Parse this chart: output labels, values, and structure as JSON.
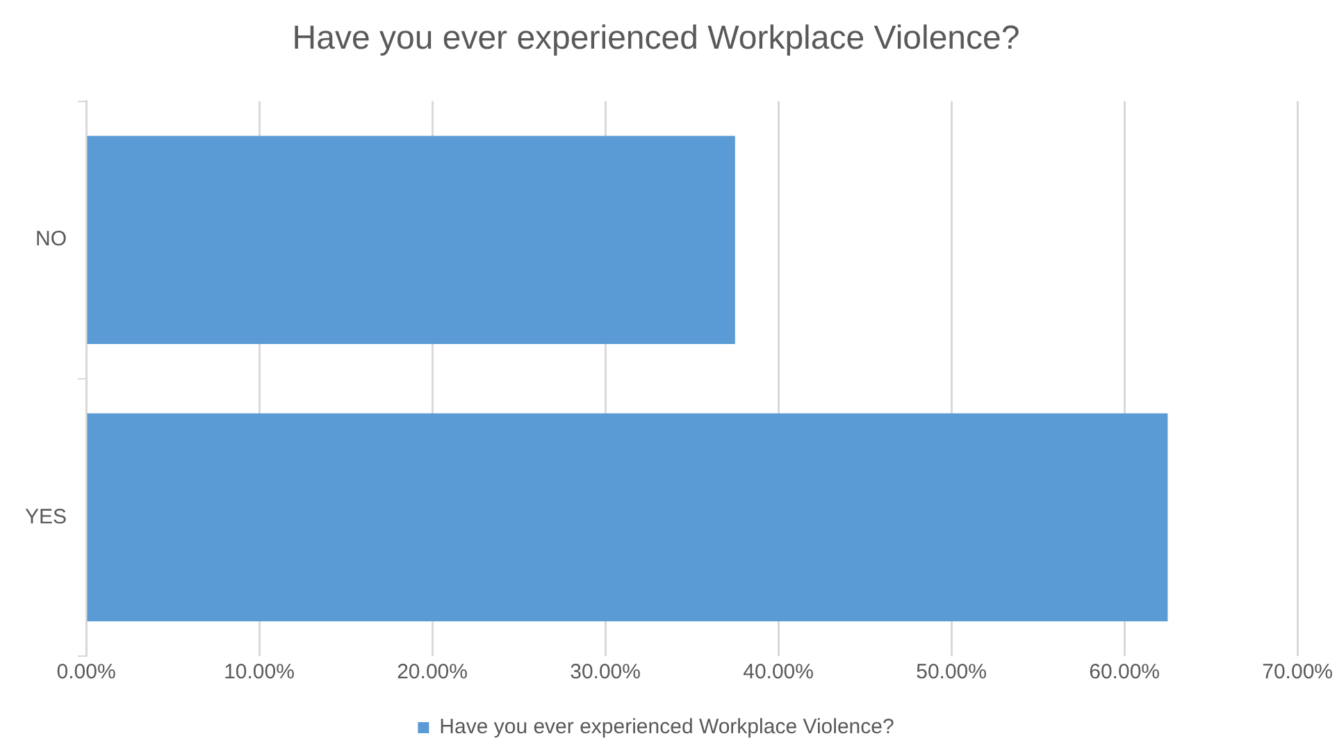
{
  "chart_data": {
    "type": "bar",
    "orientation": "horizontal",
    "title": "Have you ever experienced Workplace Violence?",
    "categories": [
      "NO",
      "YES"
    ],
    "series": [
      {
        "name": "Have you ever experienced Workplace Violence?",
        "color": "#5b9bd5",
        "values": [
          37.5,
          62.5
        ]
      }
    ],
    "xlim": [
      0,
      70
    ],
    "xticks": [
      {
        "value": 0,
        "label": "0.00%"
      },
      {
        "value": 10,
        "label": "10.00%"
      },
      {
        "value": 20,
        "label": "20.00%"
      },
      {
        "value": 30,
        "label": "30.00%"
      },
      {
        "value": 40,
        "label": "40.00%"
      },
      {
        "value": 50,
        "label": "50.00%"
      },
      {
        "value": 60,
        "label": "60.00%"
      },
      {
        "value": 70,
        "label": "70.00%"
      }
    ],
    "grid": "x",
    "legend": "bottom"
  }
}
